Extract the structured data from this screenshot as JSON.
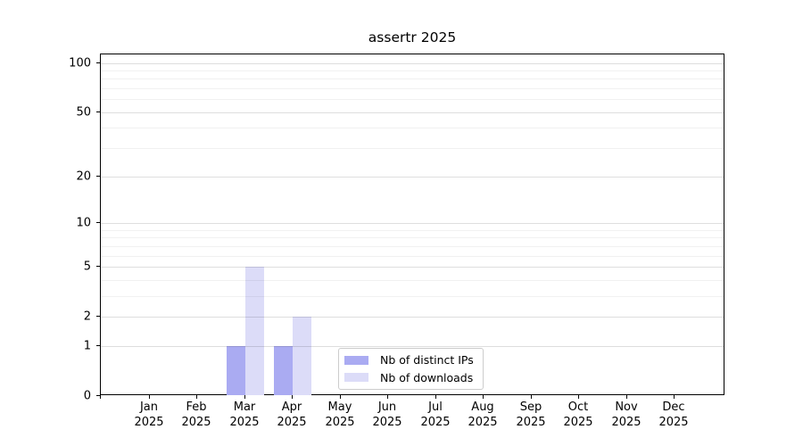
{
  "chart_data": {
    "type": "bar",
    "title": "assertr 2025",
    "year": "2025",
    "categories": [
      "Jan",
      "Feb",
      "Mar",
      "Apr",
      "May",
      "Jun",
      "Jul",
      "Aug",
      "Sep",
      "Oct",
      "Nov",
      "Dec"
    ],
    "series": [
      {
        "name": "Nb of distinct IPs",
        "color": "#aaabf2",
        "values": [
          0,
          0,
          1,
          1,
          0,
          0,
          0,
          0,
          0,
          0,
          0,
          0
        ]
      },
      {
        "name": "Nb of downloads",
        "color": "#dcdcf8",
        "values": [
          0,
          0,
          5,
          2,
          0,
          0,
          0,
          0,
          0,
          0,
          0,
          0
        ]
      }
    ],
    "y_axis": {
      "scale": "log1p",
      "range": [
        0,
        100
      ],
      "tick_values": [
        0,
        1,
        2,
        5,
        10,
        20,
        50,
        100
      ],
      "tick_labels": [
        "0",
        "1",
        "2",
        "5",
        "10",
        "20",
        "50",
        "100"
      ],
      "minor_gridline_values": [
        3,
        4,
        6,
        7,
        8,
        9,
        30,
        40,
        60,
        70,
        80,
        90
      ]
    },
    "legend_position": "inside-bottom-center",
    "grid": "horizontal",
    "colors": {
      "axis": "#000000",
      "background": "#ffffff",
      "gridline_major": "rgba(0,0,0,0.13)",
      "gridline_minor": "rgba(0,0,0,0.055)"
    }
  }
}
